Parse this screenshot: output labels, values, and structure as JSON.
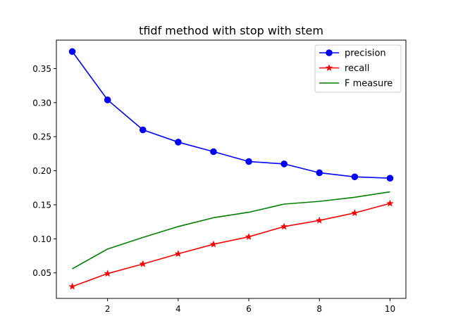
{
  "chart_data": {
    "type": "line",
    "title": "tfidf method with stop with stem",
    "xlabel": "",
    "ylabel": "",
    "x": [
      1,
      2,
      3,
      4,
      5,
      6,
      7,
      8,
      9,
      10
    ],
    "xlim": [
      0.55,
      10.45
    ],
    "ylim": [
      0.0125,
      0.3918
    ],
    "xticks": [
      2,
      4,
      6,
      8,
      10
    ],
    "yticks": [
      0.05,
      0.1,
      0.15,
      0.2,
      0.25,
      0.3,
      0.35
    ],
    "xtick_labels": [
      "2",
      "4",
      "6",
      "8",
      "10"
    ],
    "ytick_labels": [
      "0.05",
      "0.10",
      "0.15",
      "0.20",
      "0.25",
      "0.30",
      "0.35"
    ],
    "grid": false,
    "legend_placement": "top-right",
    "series": [
      {
        "name": "precision",
        "color": "#0000ff",
        "marker": "circle",
        "values": [
          0.375,
          0.304,
          0.26,
          0.242,
          0.228,
          0.2135,
          0.21,
          0.197,
          0.191,
          0.189
        ]
      },
      {
        "name": "recall",
        "color": "#ff0000",
        "marker": "star",
        "values": [
          0.03,
          0.049,
          0.063,
          0.078,
          0.092,
          0.103,
          0.118,
          0.127,
          0.138,
          0.152
        ]
      },
      {
        "name": "F measure",
        "color": "#008000",
        "marker": "none",
        "values": [
          0.056,
          0.085,
          0.102,
          0.118,
          0.131,
          0.139,
          0.151,
          0.155,
          0.161,
          0.169
        ]
      }
    ]
  }
}
